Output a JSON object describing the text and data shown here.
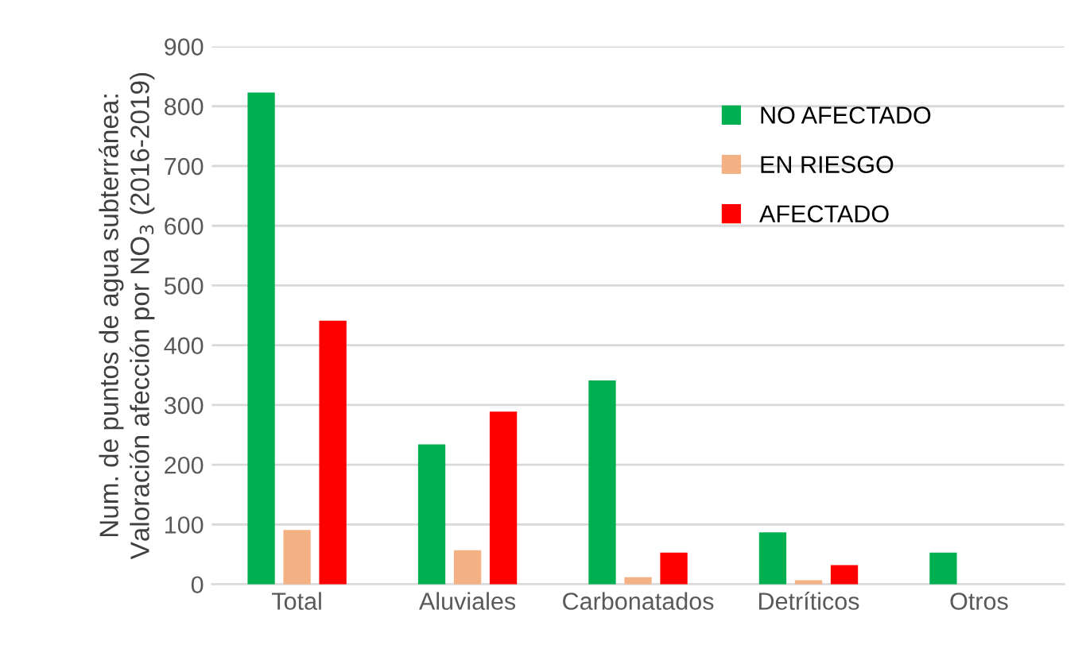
{
  "chart_data": {
    "type": "bar",
    "ylabel": "Num. de puntos de agua subterránea:\nValoración afección por NO$_{3}$ (2016-2019)",
    "categories": [
      "Total",
      "Aluviales",
      "Carbonatados",
      "Detríticos",
      "Otros"
    ],
    "series": [
      {
        "name": "NO AFECTADO",
        "color": "#00b050",
        "values": [
          823,
          234,
          341,
          87,
          53
        ]
      },
      {
        "name": "EN RIESGO",
        "color": "#f4b183",
        "values": [
          91,
          57,
          12,
          7,
          0
        ]
      },
      {
        "name": "AFECTADO",
        "color": "#ff0000",
        "values": [
          441,
          289,
          53,
          32,
          0
        ]
      }
    ],
    "ylim": [
      0,
      900
    ],
    "yticks": [
      0,
      100,
      200,
      300,
      400,
      500,
      600,
      700,
      800,
      900
    ],
    "grid": "y",
    "legend": "top right"
  }
}
